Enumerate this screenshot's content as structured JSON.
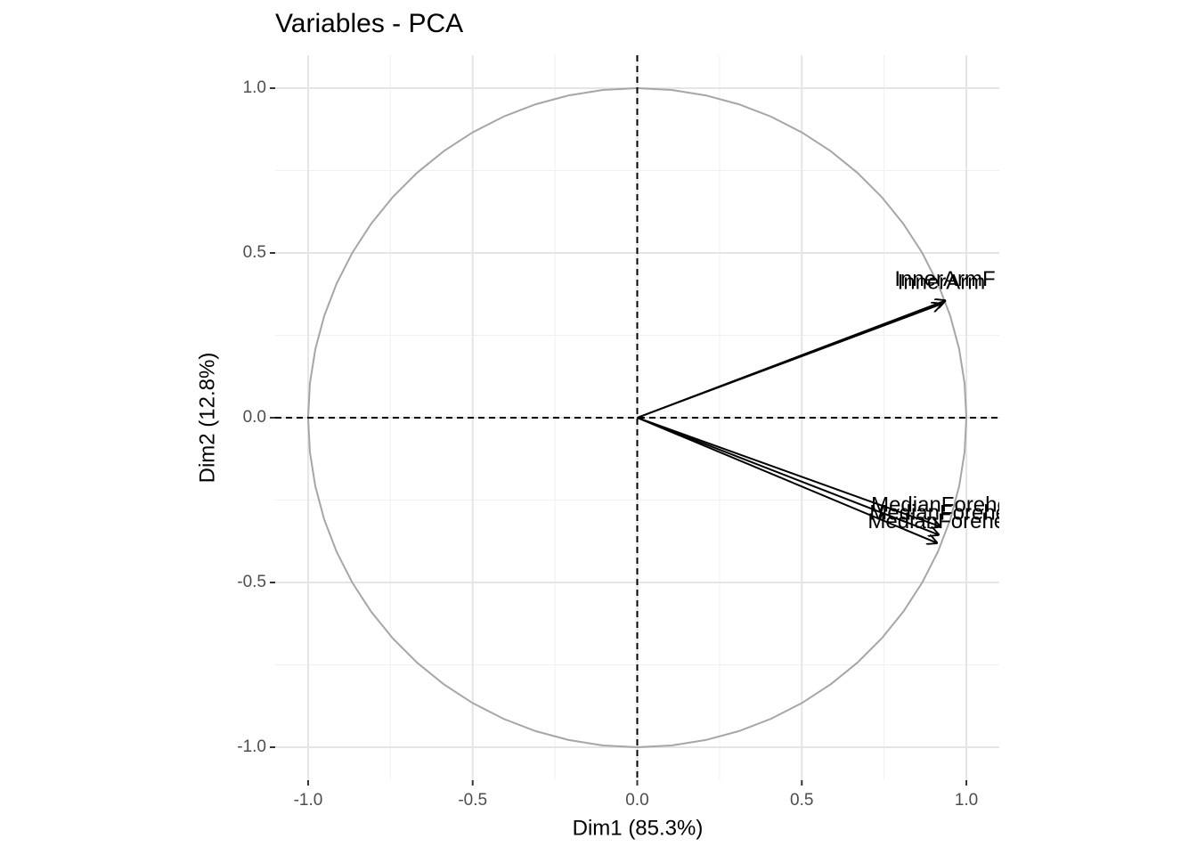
{
  "chart_data": {
    "type": "pca-variables",
    "title": "Variables - PCA",
    "x_label": "Dim1 (85.3%)",
    "y_label": "Dim2 (12.8%)",
    "xlim": [
      -1.1,
      1.1
    ],
    "ylim": [
      -1.1,
      1.1
    ],
    "xticks": [
      {
        "value": -1,
        "label": "-1.0"
      },
      -0.5,
      {
        "value": 0,
        "label": "0.0"
      },
      0.5,
      {
        "value": 1,
        "label": "1.0"
      }
    ],
    "yticks": [
      {
        "value": -1,
        "label": "-1.0"
      },
      -0.5,
      {
        "value": 0,
        "label": "0.0"
      },
      0.5,
      {
        "value": 1,
        "label": "1.0"
      }
    ],
    "minor_ticks": [
      -0.75,
      -0.25,
      0.25,
      0.75
    ],
    "grid": true,
    "color": "#000000",
    "variables": [
      {
        "name": "InnerArmF",
        "x": 0.935,
        "y": 0.355
      },
      {
        "name": "InnerArm",
        "x": 0.924,
        "y": 0.345
      },
      {
        "name": "MedianForehe",
        "x": 0.92,
        "y": -0.33
      },
      {
        "name": "MedianForehe",
        "x": 0.915,
        "y": -0.355
      },
      {
        "name": "MedianForehe",
        "x": 0.91,
        "y": -0.38
      }
    ]
  }
}
